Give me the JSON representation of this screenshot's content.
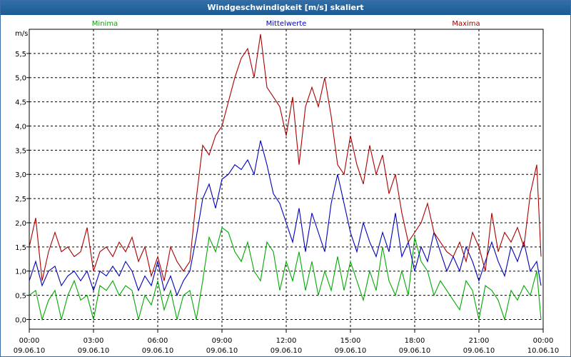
{
  "chart_data": {
    "type": "line",
    "title": "Windgeschwindigkeit [m/s] skaliert",
    "ylabel": "m/s",
    "ylim": [
      -0.2,
      6.0
    ],
    "yticks": [
      0.0,
      0.5,
      1.0,
      1.5,
      2.0,
      2.5,
      3.0,
      3.5,
      4.0,
      4.5,
      5.0,
      5.5
    ],
    "ytick_labels": [
      "0,0",
      "0,5",
      "1,0",
      "1,5",
      "2,0",
      "2,5",
      "3,0",
      "3,5",
      "4,0",
      "4,5",
      "5,0",
      "5,5"
    ],
    "xlim": [
      0,
      24
    ],
    "xticks": [
      {
        "t": 0,
        "time": "00:00",
        "date": "09.06.10"
      },
      {
        "t": 3,
        "time": "03:00",
        "date": "09.06.10"
      },
      {
        "t": 6,
        "time": "06:00",
        "date": "09.06.10"
      },
      {
        "t": 9,
        "time": "09:00",
        "date": "09.06.10"
      },
      {
        "t": 12,
        "time": "12:00",
        "date": "09.06.10"
      },
      {
        "t": 15,
        "time": "15:00",
        "date": "09.06.10"
      },
      {
        "t": 18,
        "time": "18:00",
        "date": "09.06.10"
      },
      {
        "t": 21,
        "time": "21:00",
        "date": "09.06.10"
      },
      {
        "t": 24,
        "time": "00:00",
        "date": "10.06.10"
      }
    ],
    "grid": true,
    "series": [
      {
        "name": "Minima",
        "color": "#00aa00",
        "x": [
          0,
          0.3,
          0.6,
          0.9,
          1.2,
          1.5,
          1.8,
          2.1,
          2.4,
          2.7,
          3.0,
          3.3,
          3.6,
          3.9,
          4.2,
          4.5,
          4.8,
          5.1,
          5.4,
          5.7,
          6.0,
          6.3,
          6.6,
          6.9,
          7.2,
          7.5,
          7.8,
          8.1,
          8.4,
          8.7,
          9.0,
          9.3,
          9.6,
          9.9,
          10.2,
          10.5,
          10.8,
          11.1,
          11.4,
          11.7,
          12.0,
          12.3,
          12.6,
          12.9,
          13.2,
          13.5,
          13.8,
          14.1,
          14.4,
          14.7,
          15.0,
          15.3,
          15.6,
          15.9,
          16.2,
          16.5,
          16.8,
          17.1,
          17.4,
          17.7,
          18.0,
          18.3,
          18.6,
          18.9,
          19.2,
          19.5,
          19.8,
          20.1,
          20.4,
          20.7,
          21.0,
          21.3,
          21.6,
          21.9,
          22.2,
          22.5,
          22.8,
          23.1,
          23.4,
          23.7,
          23.9
        ],
        "y": [
          0.5,
          0.6,
          0.0,
          0.4,
          0.6,
          0.0,
          0.5,
          0.8,
          0.4,
          0.5,
          0.0,
          0.7,
          0.6,
          0.8,
          0.5,
          0.7,
          0.6,
          0.0,
          0.5,
          0.3,
          0.8,
          0.2,
          0.6,
          0.0,
          0.5,
          0.6,
          0.0,
          0.8,
          1.7,
          1.4,
          1.9,
          1.8,
          1.4,
          1.2,
          1.6,
          1.0,
          0.8,
          1.6,
          1.4,
          0.6,
          1.2,
          0.8,
          1.4,
          0.6,
          1.2,
          0.5,
          1.0,
          0.6,
          1.3,
          0.6,
          1.2,
          0.8,
          0.4,
          1.0,
          0.6,
          1.5,
          0.8,
          0.5,
          1.0,
          0.5,
          1.7,
          1.2,
          1.0,
          0.5,
          0.8,
          0.6,
          0.4,
          0.2,
          0.8,
          0.6,
          0.0,
          0.7,
          0.6,
          0.4,
          0.0,
          0.6,
          0.4,
          0.7,
          0.5,
          1.0,
          0.0
        ]
      },
      {
        "name": "Mittelwerte",
        "color": "#0000bb",
        "x": [
          0,
          0.3,
          0.6,
          0.9,
          1.2,
          1.5,
          1.8,
          2.1,
          2.4,
          2.7,
          3.0,
          3.3,
          3.6,
          3.9,
          4.2,
          4.5,
          4.8,
          5.1,
          5.4,
          5.7,
          6.0,
          6.3,
          6.6,
          6.9,
          7.2,
          7.5,
          7.8,
          8.1,
          8.4,
          8.7,
          9.0,
          9.3,
          9.6,
          9.9,
          10.2,
          10.5,
          10.8,
          11.1,
          11.4,
          11.7,
          12.0,
          12.3,
          12.6,
          12.9,
          13.2,
          13.5,
          13.8,
          14.1,
          14.4,
          14.7,
          15.0,
          15.3,
          15.6,
          15.9,
          16.2,
          16.5,
          16.8,
          17.1,
          17.4,
          17.7,
          18.0,
          18.3,
          18.6,
          18.9,
          19.2,
          19.5,
          19.8,
          20.1,
          20.4,
          20.7,
          21.0,
          21.3,
          21.6,
          21.9,
          22.2,
          22.5,
          22.8,
          23.1,
          23.4,
          23.7,
          23.9
        ],
        "y": [
          0.8,
          1.2,
          0.7,
          1.0,
          1.1,
          0.7,
          0.9,
          1.0,
          0.8,
          1.0,
          0.6,
          1.0,
          0.9,
          1.1,
          0.9,
          1.2,
          1.0,
          0.6,
          0.9,
          0.7,
          1.2,
          0.6,
          0.9,
          0.5,
          0.8,
          1.0,
          1.7,
          2.5,
          2.8,
          2.3,
          2.9,
          3.0,
          3.2,
          3.1,
          3.3,
          3.0,
          3.7,
          3.2,
          2.6,
          2.4,
          2.0,
          1.6,
          2.3,
          1.4,
          2.2,
          1.8,
          1.4,
          2.4,
          3.0,
          2.4,
          1.8,
          1.4,
          2.0,
          1.6,
          1.3,
          1.8,
          1.4,
          2.2,
          1.3,
          1.6,
          1.0,
          1.5,
          1.2,
          1.8,
          1.4,
          1.0,
          1.3,
          1.0,
          1.5,
          1.2,
          0.8,
          1.2,
          1.6,
          1.2,
          0.9,
          1.5,
          1.2,
          1.6,
          1.0,
          1.2,
          0.7
        ]
      },
      {
        "name": "Maxima",
        "color": "#aa0000",
        "x": [
          0,
          0.3,
          0.6,
          0.9,
          1.2,
          1.5,
          1.8,
          2.1,
          2.4,
          2.7,
          3.0,
          3.3,
          3.6,
          3.9,
          4.2,
          4.5,
          4.8,
          5.1,
          5.4,
          5.7,
          6.0,
          6.3,
          6.6,
          6.9,
          7.2,
          7.5,
          7.8,
          8.1,
          8.4,
          8.7,
          9.0,
          9.3,
          9.6,
          9.9,
          10.2,
          10.5,
          10.8,
          11.1,
          11.4,
          11.7,
          12.0,
          12.3,
          12.6,
          12.9,
          13.2,
          13.5,
          13.8,
          14.1,
          14.4,
          14.7,
          15.0,
          15.3,
          15.6,
          15.9,
          16.2,
          16.5,
          16.8,
          17.1,
          17.4,
          17.7,
          18.0,
          18.3,
          18.6,
          18.9,
          19.2,
          19.5,
          19.8,
          20.1,
          20.4,
          20.7,
          21.0,
          21.3,
          21.6,
          21.9,
          22.2,
          22.5,
          22.8,
          23.1,
          23.4,
          23.7,
          23.9
        ],
        "y": [
          1.5,
          2.1,
          0.8,
          1.4,
          1.8,
          1.4,
          1.5,
          1.3,
          1.4,
          1.9,
          1.0,
          1.4,
          1.5,
          1.3,
          1.6,
          1.4,
          1.7,
          1.2,
          1.5,
          0.9,
          1.3,
          0.8,
          1.5,
          1.2,
          1.0,
          1.2,
          2.5,
          3.6,
          3.4,
          3.8,
          4.0,
          4.5,
          5.0,
          5.4,
          5.6,
          5.0,
          5.9,
          4.8,
          4.6,
          4.4,
          3.8,
          4.6,
          3.2,
          4.4,
          4.8,
          4.4,
          5.0,
          4.2,
          3.2,
          3.0,
          3.8,
          3.2,
          2.8,
          3.6,
          3.0,
          3.4,
          2.6,
          3.0,
          2.2,
          1.6,
          1.8,
          2.0,
          2.4,
          1.8,
          1.6,
          1.4,
          1.3,
          1.6,
          1.2,
          1.8,
          1.5,
          1.0,
          2.2,
          1.4,
          1.8,
          1.6,
          1.9,
          1.5,
          2.6,
          3.2,
          1.3
        ]
      }
    ]
  }
}
